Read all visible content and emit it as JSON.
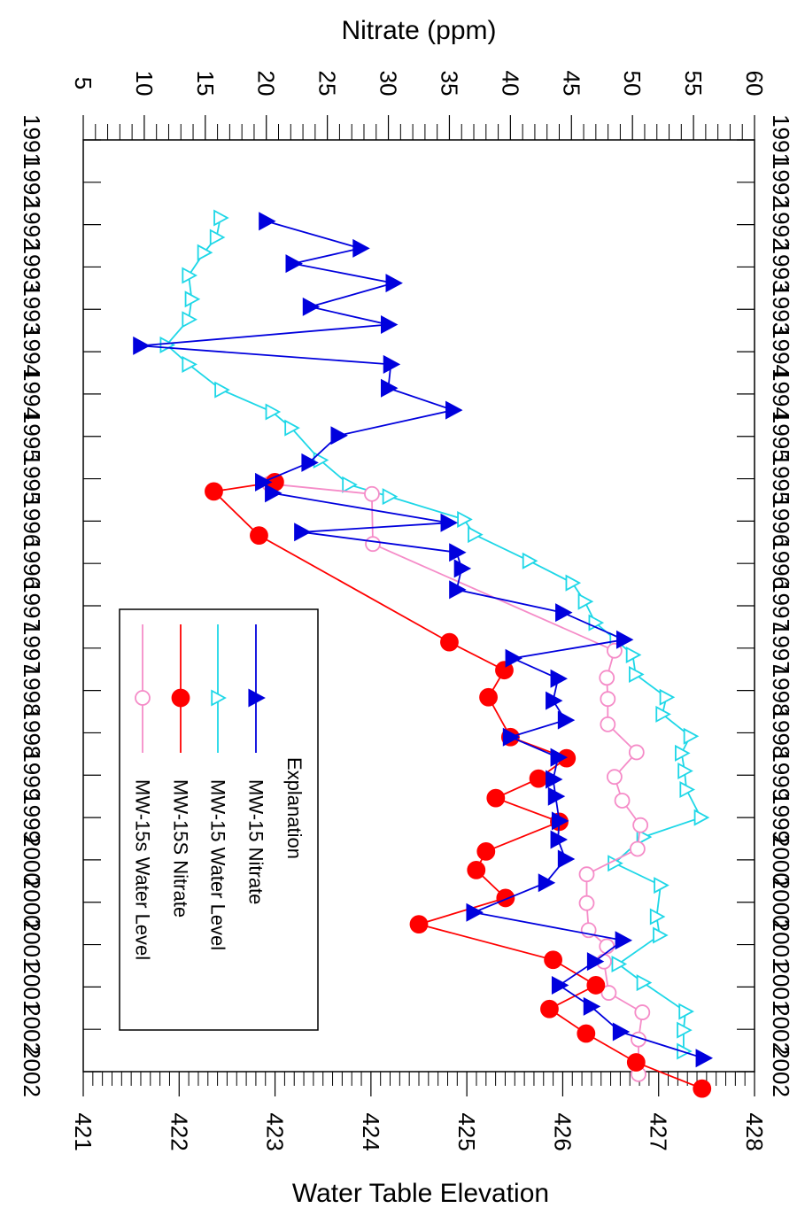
{
  "chart_data": {
    "type": "line",
    "orientation": "rotated-90-clockwise",
    "time_axis": {
      "ticks": [
        "1991",
        "1992",
        "1992",
        "1993",
        "1993",
        "1994",
        "1994",
        "1995",
        "1995",
        "1996",
        "1996",
        "1997",
        "1997",
        "1998",
        "1998",
        "1999",
        "1999",
        "2000",
        "2000",
        "2001",
        "2001",
        "2002",
        "2002"
      ],
      "range": [
        1991.0,
        2002.0
      ]
    },
    "nitrate_axis": {
      "label": "Nitrate (ppm)",
      "range": [
        5,
        60
      ],
      "ticks": [
        "5",
        "10",
        "15",
        "20",
        "25",
        "30",
        "35",
        "40",
        "45",
        "50",
        "55",
        "60"
      ]
    },
    "elevation_axis": {
      "label": "Water Table Elevation",
      "range": [
        421,
        428
      ],
      "ticks": [
        "421",
        "422",
        "423",
        "424",
        "425",
        "426",
        "427",
        "428"
      ]
    },
    "legend": {
      "title": "Explanation",
      "placement": "lower-left",
      "entries": [
        "MW-15 Nitrate",
        "MW-15 Water Level",
        "MW-15S Nitrate",
        "MW-15s Water Level"
      ]
    },
    "series": [
      {
        "name": "MW-15 Nitrate",
        "axis": "nitrate",
        "color": "#0000dd",
        "marker": "triangle-filled",
        "points": [
          [
            1991.96,
            20.0
          ],
          [
            1992.28,
            27.7
          ],
          [
            1992.46,
            22.2
          ],
          [
            1992.69,
            30.4
          ],
          [
            1992.97,
            23.6
          ],
          [
            1993.18,
            30.0
          ],
          [
            1993.43,
            9.7
          ],
          [
            1993.65,
            30.2
          ],
          [
            1993.93,
            30.0
          ],
          [
            1994.19,
            35.3
          ],
          [
            1994.49,
            25.9
          ],
          [
            1994.81,
            23.5
          ],
          [
            1995.04,
            19.7
          ],
          [
            1995.17,
            20.5
          ],
          [
            1995.52,
            34.9
          ],
          [
            1995.63,
            22.9
          ],
          [
            1995.87,
            35.6
          ],
          [
            1996.06,
            36.0
          ],
          [
            1996.31,
            35.6
          ],
          [
            1996.58,
            44.3
          ],
          [
            1996.9,
            49.3
          ],
          [
            1997.12,
            40.2
          ],
          [
            1997.36,
            43.9
          ],
          [
            1997.62,
            43.5
          ],
          [
            1997.85,
            44.5
          ],
          [
            1998.05,
            40.0
          ],
          [
            1998.29,
            43.9
          ],
          [
            1998.55,
            43.5
          ],
          [
            1998.75,
            43.7
          ],
          [
            1999.04,
            44.0
          ],
          [
            1999.26,
            43.9
          ],
          [
            1999.49,
            44.5
          ],
          [
            1999.77,
            42.9
          ],
          [
            2000.12,
            37.0
          ],
          [
            2000.45,
            49.2
          ],
          [
            2000.7,
            46.9
          ],
          [
            2000.98,
            44.0
          ],
          [
            2001.23,
            46.6
          ],
          [
            2001.53,
            49.0
          ],
          [
            2001.84,
            55.8
          ]
        ]
      },
      {
        "name": "MW-15 Water Level",
        "axis": "elevation",
        "color": "#1ed7e7",
        "marker": "triangle-open",
        "points": [
          [
            1991.92,
            422.43
          ],
          [
            1992.15,
            422.39
          ],
          [
            1992.33,
            422.26
          ],
          [
            1992.6,
            422.1
          ],
          [
            1992.88,
            422.13
          ],
          [
            1993.12,
            422.1
          ],
          [
            1993.42,
            421.87
          ],
          [
            1993.65,
            422.1
          ],
          [
            1993.95,
            422.44
          ],
          [
            1994.21,
            422.97
          ],
          [
            1994.4,
            423.17
          ],
          [
            1994.78,
            423.47
          ],
          [
            1995.07,
            423.77
          ],
          [
            1995.21,
            424.19
          ],
          [
            1995.48,
            424.97
          ],
          [
            1995.66,
            425.08
          ],
          [
            1995.97,
            425.65
          ],
          [
            1996.23,
            426.1
          ],
          [
            1996.45,
            426.23
          ],
          [
            1996.7,
            426.34
          ],
          [
            1996.91,
            426.56
          ],
          [
            1997.08,
            426.73
          ],
          [
            1997.31,
            426.76
          ],
          [
            1997.58,
            427.08
          ],
          [
            1997.78,
            427.04
          ],
          [
            1998.04,
            427.33
          ],
          [
            1998.24,
            427.24
          ],
          [
            1998.45,
            427.27
          ],
          [
            1998.67,
            427.29
          ],
          [
            1999.0,
            427.44
          ],
          [
            1999.23,
            426.84
          ],
          [
            1999.54,
            426.54
          ],
          [
            1999.8,
            427.02
          ],
          [
            2000.17,
            426.98
          ],
          [
            2000.39,
            427.01
          ],
          [
            2000.73,
            426.58
          ],
          [
            2000.95,
            426.84
          ],
          [
            2001.29,
            427.28
          ],
          [
            2001.51,
            427.26
          ],
          [
            2001.76,
            427.26
          ]
        ]
      },
      {
        "name": "MW-15S Nitrate",
        "axis": "nitrate",
        "color": "#ff0000",
        "marker": "circle-filled",
        "points": [
          [
            1995.04,
            20.7
          ],
          [
            1995.15,
            15.7
          ],
          [
            1995.67,
            19.4
          ],
          [
            1996.93,
            35.0
          ],
          [
            1997.26,
            39.5
          ],
          [
            1997.58,
            38.2
          ],
          [
            1998.05,
            40.0
          ],
          [
            1998.3,
            44.6
          ],
          [
            1998.54,
            42.3
          ],
          [
            1998.77,
            38.8
          ],
          [
            1999.05,
            44.0
          ],
          [
            1999.4,
            38.0
          ],
          [
            1999.62,
            37.2
          ],
          [
            1999.95,
            39.6
          ],
          [
            2000.26,
            32.5
          ],
          [
            2000.68,
            43.5
          ],
          [
            2000.98,
            47.0
          ],
          [
            2001.26,
            43.2
          ],
          [
            2001.55,
            46.2
          ],
          [
            2001.89,
            50.3
          ],
          [
            2002.2,
            55.7
          ]
        ]
      },
      {
        "name": "MW-15s Water Level",
        "axis": "elevation",
        "color": "#f58cc8",
        "marker": "circle-open",
        "points": [
          [
            1995.06,
            422.94
          ],
          [
            1995.18,
            424.01
          ],
          [
            1995.77,
            424.02
          ],
          [
            1997.03,
            426.54
          ],
          [
            1997.35,
            426.46
          ],
          [
            1997.6,
            426.47
          ],
          [
            1997.9,
            426.47
          ],
          [
            1998.23,
            426.77
          ],
          [
            1998.52,
            426.54
          ],
          [
            1998.8,
            426.62
          ],
          [
            1999.09,
            426.81
          ],
          [
            1999.37,
            426.78
          ],
          [
            1999.67,
            426.25
          ],
          [
            2000.01,
            426.25
          ],
          [
            2000.33,
            426.27
          ],
          [
            2000.52,
            426.46
          ],
          [
            2000.7,
            426.43
          ],
          [
            2001.07,
            426.48
          ],
          [
            2001.3,
            426.83
          ],
          [
            2001.62,
            426.79
          ],
          [
            2002.03,
            426.79
          ]
        ]
      }
    ]
  }
}
